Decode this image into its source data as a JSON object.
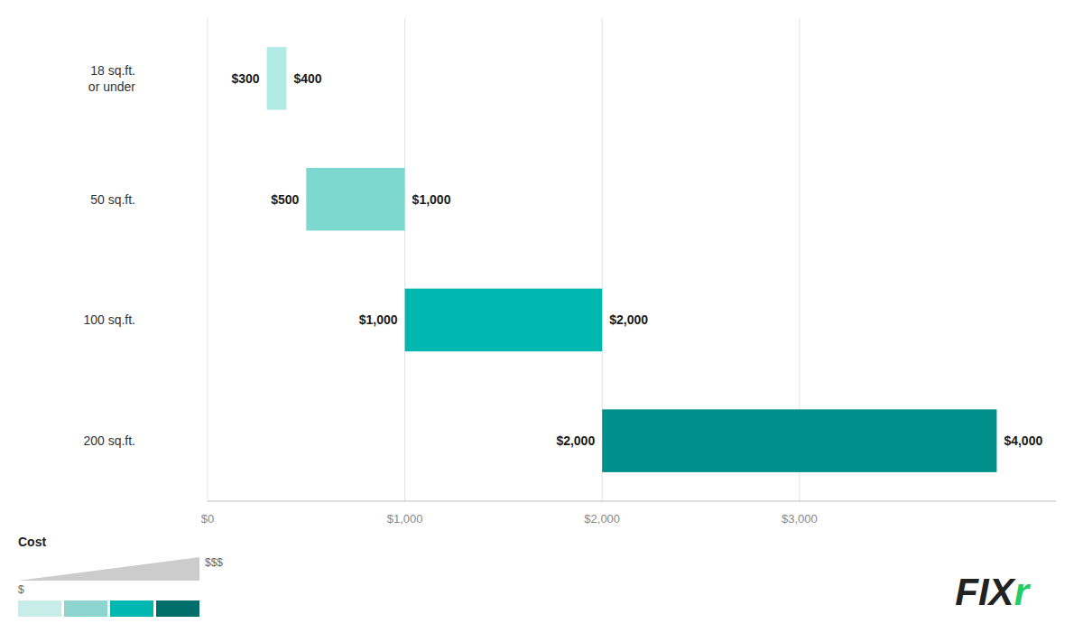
{
  "chart_data": {
    "type": "bar",
    "orientation": "horizontal",
    "categories": [
      "18 sq.ft.\nor under",
      "50 sq.ft.",
      "100 sq.ft.",
      "200 sq.ft."
    ],
    "starts": [
      300,
      500,
      1000,
      2000
    ],
    "values": [
      400,
      1000,
      2000,
      4000
    ],
    "start_labels": [
      "$300",
      "$500",
      "$1,000",
      "$2,000"
    ],
    "value_labels": [
      "$400",
      "$1,000",
      "$2,000",
      "$4,000"
    ],
    "data_labels": true,
    "colors": [
      "#b2ebe6",
      "#7dd8d0",
      "#00b8b0",
      "#008f8a"
    ],
    "xlim": [
      0,
      4300
    ],
    "xticks": [
      {
        "value": 0,
        "label": "$0"
      },
      {
        "value": 1000,
        "label": "$1,000"
      },
      {
        "value": 2000,
        "label": "$2,000"
      },
      {
        "value": 3000,
        "label": "$3,000"
      }
    ],
    "grid": true,
    "tick_labels": "x",
    "cost_legend": {
      "title": "Cost",
      "low": "$",
      "high": "$$$",
      "colors": [
        "#c8ede9",
        "#8dd5ce",
        "#00b8b0",
        "#006e6a"
      ]
    },
    "annotations": [
      {
        "text": "FIX",
        "color": "#222222"
      },
      {
        "text": "r",
        "color": "#22cc66"
      }
    ]
  }
}
